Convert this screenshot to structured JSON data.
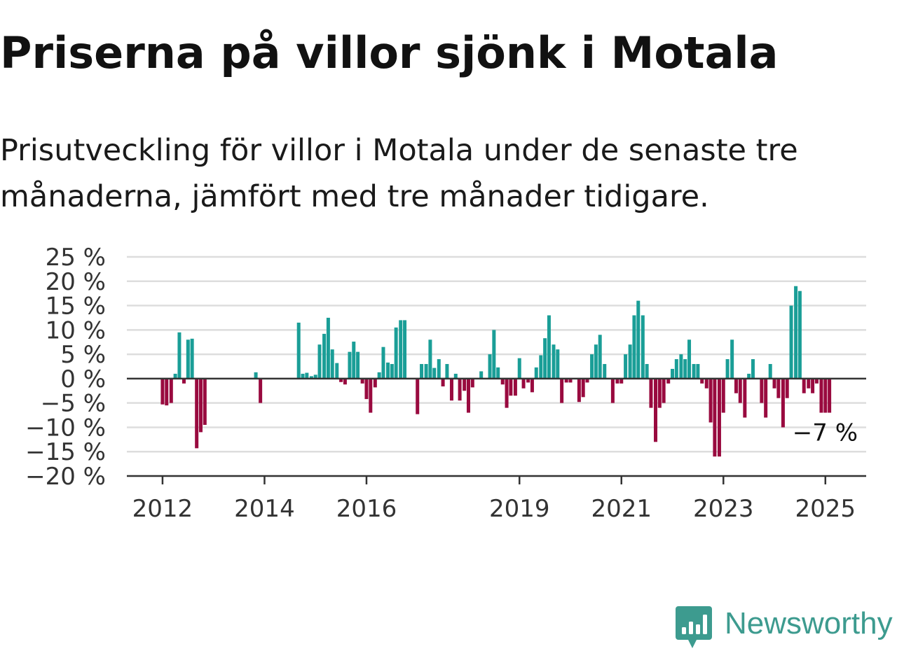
{
  "title": "Priserna på villor sjönk i Motala",
  "subtitle": "Prisutveckling för villor i Motala under de senaste tre månaderna, jämfört med tre månader tidigare.",
  "brand": {
    "name": "Newsworthy",
    "icon": "newsworthy-logo-icon",
    "color": "#3d9b8f"
  },
  "colors": {
    "positive": "#1a9e97",
    "negative": "#990a3f",
    "grid": "#dddddd",
    "axis": "#333333",
    "text": "#111111"
  },
  "chart_data": {
    "type": "bar",
    "title": "",
    "xlabel": "",
    "ylabel": "",
    "ylim": [
      -20,
      25
    ],
    "yticks": [
      {
        "value": 25,
        "label": "25 %"
      },
      {
        "value": 20,
        "label": "20 %"
      },
      {
        "value": 15,
        "label": "15 %"
      },
      {
        "value": 10,
        "label": "10 %"
      },
      {
        "value": 5,
        "label": "5 %"
      },
      {
        "value": 0,
        "label": "0 %"
      },
      {
        "value": -5,
        "label": "−5 %"
      },
      {
        "value": -10,
        "label": "−10 %"
      },
      {
        "value": -15,
        "label": "−15 %"
      },
      {
        "value": -20,
        "label": "−20 %"
      }
    ],
    "xticks": [
      {
        "value": 2012,
        "label": "2012"
      },
      {
        "value": 2014,
        "label": "2014"
      },
      {
        "value": 2016,
        "label": "2016"
      },
      {
        "value": 2019,
        "label": "2019"
      },
      {
        "value": 2021,
        "label": "2021"
      },
      {
        "value": 2023,
        "label": "2023"
      },
      {
        "value": 2025,
        "label": "2025"
      }
    ],
    "xlim": [
      2011.3,
      2025.8
    ],
    "grid": true,
    "legend": "none",
    "last_label": "−7 %",
    "points": [
      {
        "x": 2012.0,
        "y": -5.3
      },
      {
        "x": 2012.08,
        "y": -5.5
      },
      {
        "x": 2012.17,
        "y": -5.0
      },
      {
        "x": 2012.25,
        "y": 1.0
      },
      {
        "x": 2012.33,
        "y": 9.5
      },
      {
        "x": 2012.42,
        "y": -1.0
      },
      {
        "x": 2012.5,
        "y": 8.0
      },
      {
        "x": 2012.58,
        "y": 8.2
      },
      {
        "x": 2012.67,
        "y": -14.3
      },
      {
        "x": 2012.75,
        "y": -11.0
      },
      {
        "x": 2012.83,
        "y": -9.5
      },
      {
        "x": 2013.83,
        "y": 1.3
      },
      {
        "x": 2013.92,
        "y": -5.0
      },
      {
        "x": 2014.67,
        "y": 11.5
      },
      {
        "x": 2014.75,
        "y": 1.0
      },
      {
        "x": 2014.83,
        "y": 1.2
      },
      {
        "x": 2014.92,
        "y": 0.5
      },
      {
        "x": 2015.0,
        "y": 0.8
      },
      {
        "x": 2015.08,
        "y": 7.0
      },
      {
        "x": 2015.17,
        "y": 9.2
      },
      {
        "x": 2015.25,
        "y": 12.5
      },
      {
        "x": 2015.33,
        "y": 6.0
      },
      {
        "x": 2015.42,
        "y": 3.2
      },
      {
        "x": 2015.5,
        "y": -0.7
      },
      {
        "x": 2015.58,
        "y": -1.2
      },
      {
        "x": 2015.67,
        "y": 5.5
      },
      {
        "x": 2015.75,
        "y": 7.6
      },
      {
        "x": 2015.83,
        "y": 5.5
      },
      {
        "x": 2015.92,
        "y": -1.0
      },
      {
        "x": 2016.0,
        "y": -4.2
      },
      {
        "x": 2016.08,
        "y": -7.0
      },
      {
        "x": 2016.17,
        "y": -1.8
      },
      {
        "x": 2016.25,
        "y": 1.3
      },
      {
        "x": 2016.33,
        "y": 6.5
      },
      {
        "x": 2016.42,
        "y": 3.3
      },
      {
        "x": 2016.5,
        "y": 3.0
      },
      {
        "x": 2016.58,
        "y": 10.5
      },
      {
        "x": 2016.67,
        "y": 12.0
      },
      {
        "x": 2016.75,
        "y": 12.0
      },
      {
        "x": 2017.0,
        "y": -7.3
      },
      {
        "x": 2017.08,
        "y": 3.0
      },
      {
        "x": 2017.17,
        "y": 3.0
      },
      {
        "x": 2017.25,
        "y": 8.0
      },
      {
        "x": 2017.33,
        "y": 2.2
      },
      {
        "x": 2017.42,
        "y": 4.0
      },
      {
        "x": 2017.5,
        "y": -1.6
      },
      {
        "x": 2017.58,
        "y": 3.0
      },
      {
        "x": 2017.67,
        "y": -4.5
      },
      {
        "x": 2017.75,
        "y": 1.0
      },
      {
        "x": 2017.83,
        "y": -4.5
      },
      {
        "x": 2017.92,
        "y": -2.5
      },
      {
        "x": 2018.0,
        "y": -7.0
      },
      {
        "x": 2018.08,
        "y": -1.8
      },
      {
        "x": 2018.25,
        "y": 1.5
      },
      {
        "x": 2018.42,
        "y": 5.0
      },
      {
        "x": 2018.5,
        "y": 10.0
      },
      {
        "x": 2018.58,
        "y": 2.3
      },
      {
        "x": 2018.67,
        "y": -1.2
      },
      {
        "x": 2018.75,
        "y": -6.0
      },
      {
        "x": 2018.83,
        "y": -3.5
      },
      {
        "x": 2018.92,
        "y": -3.5
      },
      {
        "x": 2019.0,
        "y": 4.2
      },
      {
        "x": 2019.08,
        "y": -2.0
      },
      {
        "x": 2019.17,
        "y": -0.8
      },
      {
        "x": 2019.25,
        "y": -2.8
      },
      {
        "x": 2019.33,
        "y": 2.3
      },
      {
        "x": 2019.42,
        "y": 4.8
      },
      {
        "x": 2019.5,
        "y": 8.3
      },
      {
        "x": 2019.58,
        "y": 13.0
      },
      {
        "x": 2019.67,
        "y": 7.0
      },
      {
        "x": 2019.75,
        "y": 6.0
      },
      {
        "x": 2019.83,
        "y": -5.0
      },
      {
        "x": 2019.92,
        "y": -0.8
      },
      {
        "x": 2020.0,
        "y": -0.8
      },
      {
        "x": 2020.17,
        "y": -4.8
      },
      {
        "x": 2020.25,
        "y": -3.8
      },
      {
        "x": 2020.33,
        "y": -0.8
      },
      {
        "x": 2020.42,
        "y": 5.0
      },
      {
        "x": 2020.5,
        "y": 7.0
      },
      {
        "x": 2020.58,
        "y": 9.0
      },
      {
        "x": 2020.67,
        "y": 3.0
      },
      {
        "x": 2020.83,
        "y": -5.0
      },
      {
        "x": 2020.92,
        "y": -1.0
      },
      {
        "x": 2021.0,
        "y": -1.0
      },
      {
        "x": 2021.08,
        "y": 5.0
      },
      {
        "x": 2021.17,
        "y": 7.0
      },
      {
        "x": 2021.25,
        "y": 13.0
      },
      {
        "x": 2021.33,
        "y": 16.0
      },
      {
        "x": 2021.42,
        "y": 13.0
      },
      {
        "x": 2021.5,
        "y": 3.0
      },
      {
        "x": 2021.58,
        "y": -6.0
      },
      {
        "x": 2021.67,
        "y": -13.0
      },
      {
        "x": 2021.75,
        "y": -6.0
      },
      {
        "x": 2021.83,
        "y": -5.0
      },
      {
        "x": 2021.92,
        "y": -1.0
      },
      {
        "x": 2022.0,
        "y": 2.0
      },
      {
        "x": 2022.08,
        "y": 4.0
      },
      {
        "x": 2022.17,
        "y": 5.0
      },
      {
        "x": 2022.25,
        "y": 4.0
      },
      {
        "x": 2022.33,
        "y": 8.0
      },
      {
        "x": 2022.42,
        "y": 3.0
      },
      {
        "x": 2022.5,
        "y": 3.0
      },
      {
        "x": 2022.58,
        "y": -1.0
      },
      {
        "x": 2022.67,
        "y": -2.0
      },
      {
        "x": 2022.75,
        "y": -9.0
      },
      {
        "x": 2022.83,
        "y": -16.0
      },
      {
        "x": 2022.92,
        "y": -16.0
      },
      {
        "x": 2023.0,
        "y": -7.0
      },
      {
        "x": 2023.08,
        "y": 4.0
      },
      {
        "x": 2023.17,
        "y": 8.0
      },
      {
        "x": 2023.25,
        "y": -3.0
      },
      {
        "x": 2023.33,
        "y": -5.0
      },
      {
        "x": 2023.42,
        "y": -8.0
      },
      {
        "x": 2023.5,
        "y": 1.0
      },
      {
        "x": 2023.58,
        "y": 4.0
      },
      {
        "x": 2023.75,
        "y": -5.0
      },
      {
        "x": 2023.83,
        "y": -8.0
      },
      {
        "x": 2023.92,
        "y": 3.0
      },
      {
        "x": 2024.0,
        "y": -2.0
      },
      {
        "x": 2024.08,
        "y": -4.0
      },
      {
        "x": 2024.17,
        "y": -10.0
      },
      {
        "x": 2024.25,
        "y": -4.0
      },
      {
        "x": 2024.33,
        "y": 15.0
      },
      {
        "x": 2024.42,
        "y": 19.0
      },
      {
        "x": 2024.5,
        "y": 18.0
      },
      {
        "x": 2024.58,
        "y": -3.0
      },
      {
        "x": 2024.67,
        "y": -2.0
      },
      {
        "x": 2024.75,
        "y": -3.0
      },
      {
        "x": 2024.83,
        "y": -1.0
      },
      {
        "x": 2024.92,
        "y": -7.0
      },
      {
        "x": 2025.0,
        "y": -7.0
      },
      {
        "x": 2025.08,
        "y": -7.0
      }
    ]
  }
}
